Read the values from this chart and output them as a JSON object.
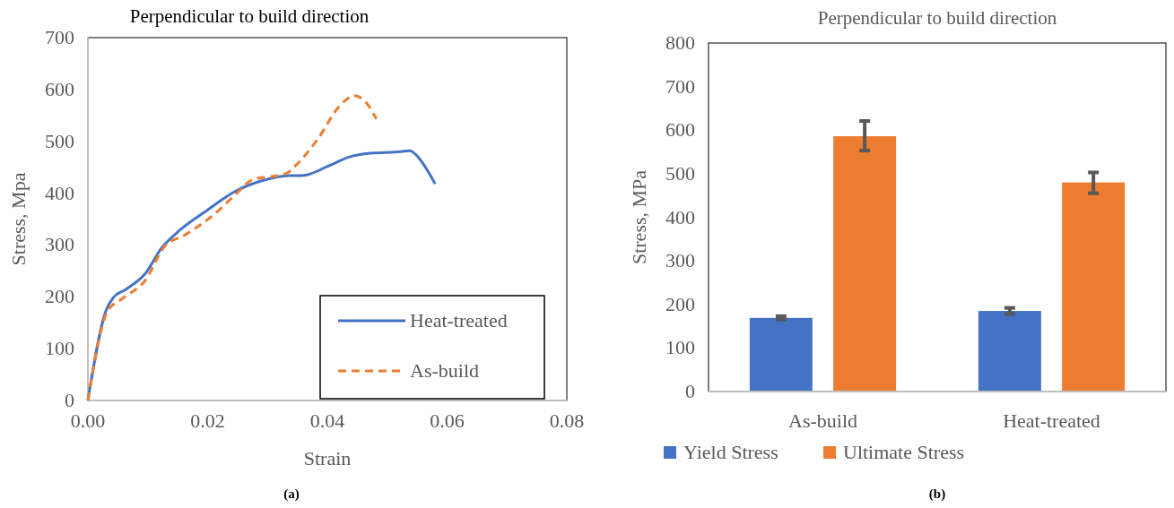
{
  "chart_data": [
    {
      "type": "line",
      "title": "Perpendicular to build direction",
      "xlabel": "Strain",
      "ylabel": "Stress, Mpa",
      "annotations": [
        "(a)"
      ],
      "xlim": [
        0,
        0.08
      ],
      "xticks": [
        {
          "value": 0,
          "label": "0.00"
        },
        {
          "value": 0.02,
          "label": "0.02"
        },
        {
          "value": 0.04,
          "label": "0.04"
        },
        {
          "value": 0.06,
          "label": "0.06"
        },
        {
          "value": 0.08,
          "label": "0.08"
        }
      ],
      "ylim": [
        0,
        700
      ],
      "yticks": [
        0,
        100,
        200,
        300,
        400,
        500,
        600,
        700
      ],
      "grid": false,
      "legend": "bottom right",
      "series": [
        {
          "name": "Heat-treated",
          "color": "#4472c4",
          "line_style": "solid",
          "x": [
            0,
            0.003,
            0.0043,
            0.0063,
            0.0096,
            0.0123,
            0.0153,
            0.0198,
            0.0247,
            0.0288,
            0.0337,
            0.0358,
            0.0403,
            0.0437,
            0.0472,
            0.0523,
            0.0538,
            0.0547,
            0.058
          ],
          "values": [
            0,
            173,
            199,
            214,
            245,
            294,
            328,
            366,
            404,
            423,
            434,
            434,
            453,
            470,
            477,
            480,
            482,
            475,
            418
          ]
        },
        {
          "name": "As-build",
          "color": "#ed7d31",
          "line_style": "dashed",
          "x": [
            0,
            0.0033,
            0.0058,
            0.0096,
            0.0128,
            0.0163,
            0.0213,
            0.0247,
            0.0277,
            0.0307,
            0.0333,
            0.0347,
            0.0382,
            0.0422,
            0.0445,
            0.0463,
            0.0482
          ],
          "values": [
            0,
            173,
            197,
            232,
            297,
            320,
            361,
            398,
            427,
            432,
            439,
            453,
            501,
            570,
            588,
            577,
            543
          ]
        }
      ]
    },
    {
      "type": "bar",
      "title": "Perpendicular to build direction",
      "ylabel": "Stress, MPa",
      "annotations": [
        "(b)"
      ],
      "categories": [
        "As-build",
        "Heat-treated"
      ],
      "ylim": [
        0,
        800
      ],
      "yticks": [
        0,
        100,
        200,
        300,
        400,
        500,
        600,
        700,
        800
      ],
      "grid": false,
      "legend": "bottom",
      "series": [
        {
          "name": "Yield Stress",
          "color": "#4472c4",
          "values": [
            169,
            185
          ],
          "errors": [
            4,
            7
          ]
        },
        {
          "name": "Ultimate Stress",
          "color": "#ed7d31",
          "values": [
            586,
            480
          ],
          "errors": [
            [
              553,
              621
            ],
            [
              455,
              503
            ]
          ]
        }
      ]
    }
  ]
}
